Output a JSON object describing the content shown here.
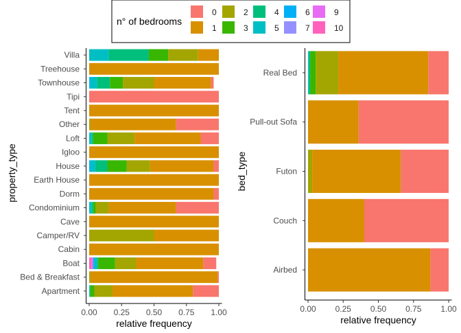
{
  "legend": {
    "title": "n° of bedrooms",
    "placement": "top",
    "items": [
      {
        "label": "0",
        "color": "#F8766D"
      },
      {
        "label": "1",
        "color": "#D89000"
      },
      {
        "label": "2",
        "color": "#A3A500"
      },
      {
        "label": "3",
        "color": "#39B600"
      },
      {
        "label": "4",
        "color": "#00BF7D"
      },
      {
        "label": "5",
        "color": "#00BFC4"
      },
      {
        "label": "6",
        "color": "#00B0F6"
      },
      {
        "label": "7",
        "color": "#9590FF"
      },
      {
        "label": "9",
        "color": "#E76BF3"
      },
      {
        "label": "10",
        "color": "#FF62BC"
      }
    ]
  },
  "chart_data": [
    {
      "type": "bar",
      "orientation": "horizontal",
      "stacked": true,
      "position": "fill",
      "title": "",
      "xlabel": "relative frequency",
      "ylabel": "property_type",
      "xlim": [
        0,
        1
      ],
      "xticks": [
        "0.00",
        "0.25",
        "0.50",
        "0.75",
        "1.00"
      ],
      "categories": [
        "Villa",
        "Treehouse",
        "Townhouse",
        "Tipi",
        "Tent",
        "Other",
        "Loft",
        "Igloo",
        "House",
        "Earth House",
        "Dorm",
        "Condominium",
        "Cave",
        "Camper/RV",
        "Cabin",
        "Boat",
        "Bed & Breakfast",
        "Apartment"
      ],
      "series": [
        {
          "name": "10",
          "values": [
            0,
            0,
            0,
            0,
            0,
            0,
            0,
            0,
            0,
            0,
            0,
            0,
            0,
            0,
            0,
            0.02,
            0,
            0
          ]
        },
        {
          "name": "9",
          "values": [
            0,
            0,
            0,
            0,
            0,
            0,
            0,
            0,
            0,
            0,
            0,
            0,
            0,
            0,
            0,
            0.01,
            0,
            0
          ]
        },
        {
          "name": "7",
          "values": [
            0,
            0,
            0,
            0,
            0,
            0,
            0,
            0,
            0,
            0,
            0,
            0,
            0,
            0,
            0,
            0,
            0,
            0
          ]
        },
        {
          "name": "6",
          "values": [
            0,
            0,
            0.01,
            0,
            0,
            0,
            0,
            0,
            0.01,
            0,
            0,
            0,
            0,
            0,
            0,
            0.01,
            0,
            0
          ]
        },
        {
          "name": "5",
          "values": [
            0.15,
            0,
            0.05,
            0,
            0,
            0,
            0.02,
            0,
            0.04,
            0,
            0,
            0.02,
            0,
            0,
            0,
            0.02,
            0,
            0.005
          ]
        },
        {
          "name": "4",
          "values": [
            0.31,
            0,
            0.1,
            0,
            0,
            0,
            0.01,
            0,
            0.09,
            0,
            0,
            0.01,
            0,
            0,
            0,
            0.01,
            0,
            0.005
          ]
        },
        {
          "name": "3",
          "values": [
            0.15,
            0,
            0.1,
            0,
            0,
            0,
            0.11,
            0,
            0.15,
            0,
            0,
            0.02,
            0,
            0,
            0,
            0.13,
            0,
            0.03
          ]
        },
        {
          "name": "2",
          "values": [
            0.23,
            0,
            0.24,
            0,
            0,
            0.01,
            0.21,
            0,
            0.18,
            0,
            0,
            0.1,
            0,
            0.5,
            0,
            0.16,
            0.01,
            0.14
          ]
        },
        {
          "name": "1",
          "values": [
            0.16,
            1,
            0.44,
            0,
            1,
            0.66,
            0.51,
            1,
            0.49,
            1,
            0.96,
            0.52,
            1,
            0.5,
            1,
            0.52,
            0.98,
            0.62
          ]
        },
        {
          "name": "0",
          "values": [
            0,
            0,
            0.02,
            1,
            0,
            0.33,
            0.14,
            0,
            0.04,
            0,
            0.04,
            0.33,
            0,
            0,
            0,
            0.1,
            0.01,
            0.2
          ]
        }
      ]
    },
    {
      "type": "bar",
      "orientation": "horizontal",
      "stacked": true,
      "position": "fill",
      "title": "",
      "xlabel": "relative frequency",
      "ylabel": "bed_type",
      "xlim": [
        0,
        1
      ],
      "xticks": [
        "0.00",
        "0.25",
        "0.50",
        "0.75",
        "1.00"
      ],
      "categories": [
        "Real Bed",
        "Pull-out Sofa",
        "Futon",
        "Couch",
        "Airbed"
      ],
      "series": [
        {
          "name": "10",
          "values": [
            0,
            0,
            0,
            0,
            0
          ]
        },
        {
          "name": "9",
          "values": [
            0,
            0,
            0,
            0,
            0
          ]
        },
        {
          "name": "7",
          "values": [
            0,
            0,
            0,
            0,
            0
          ]
        },
        {
          "name": "6",
          "values": [
            0.002,
            0,
            0,
            0,
            0
          ]
        },
        {
          "name": "5",
          "values": [
            0.003,
            0,
            0,
            0,
            0
          ]
        },
        {
          "name": "4",
          "values": [
            0.01,
            0,
            0,
            0,
            0
          ]
        },
        {
          "name": "3",
          "values": [
            0.04,
            0,
            0,
            0,
            0
          ]
        },
        {
          "name": "2",
          "values": [
            0.16,
            0,
            0.03,
            0,
            0
          ]
        },
        {
          "name": "1",
          "values": [
            0.64,
            0.36,
            0.63,
            0.4,
            0.87
          ]
        },
        {
          "name": "0",
          "values": [
            0.145,
            0.64,
            0.34,
            0.6,
            0.13
          ]
        }
      ]
    }
  ]
}
